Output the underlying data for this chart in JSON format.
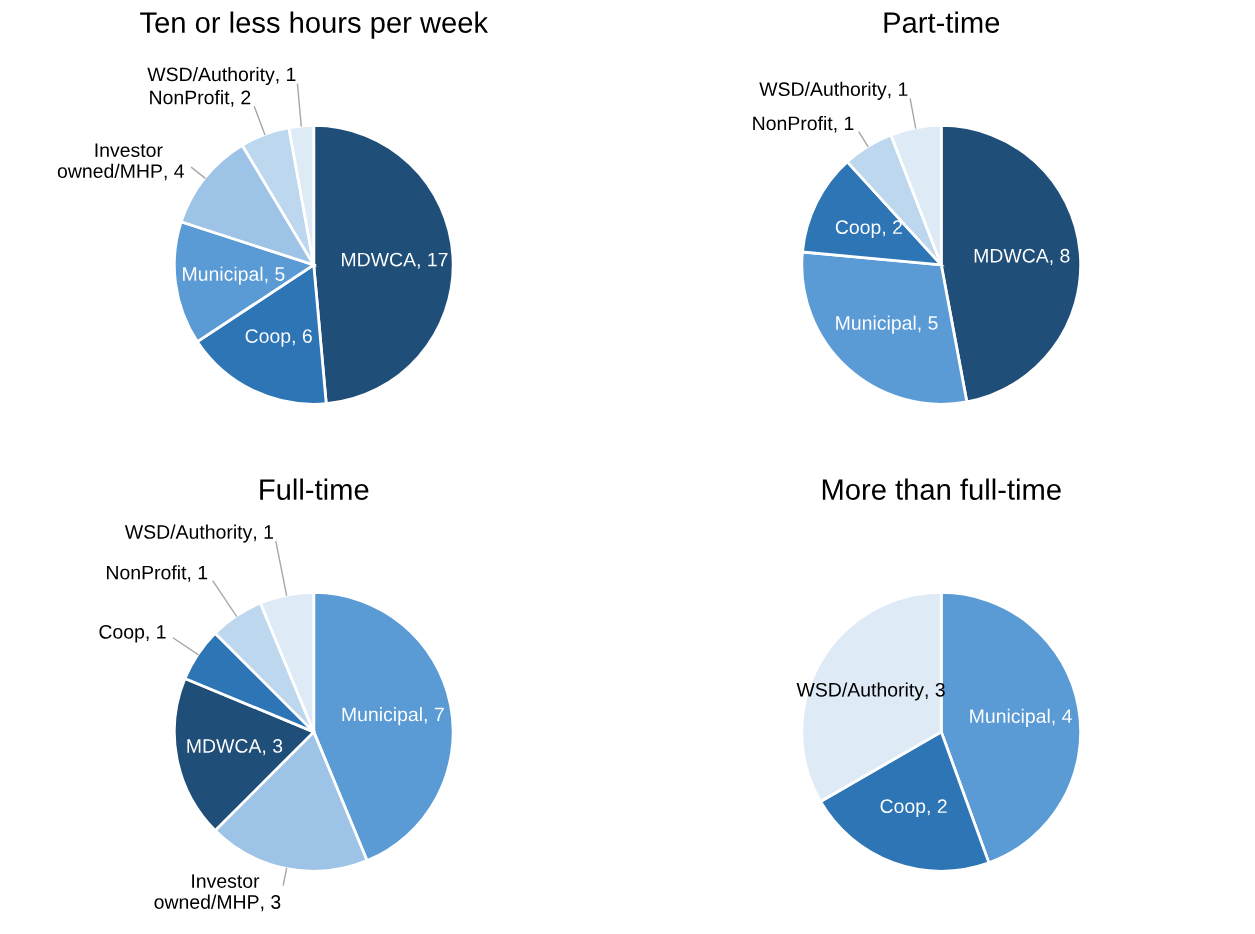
{
  "chart_data": [
    {
      "type": "pie",
      "title": "Ten or less hours per week",
      "categories": [
        "MDWCA",
        "Coop",
        "Municipal",
        "Investor owned/MHP",
        "NonProfit",
        "WSD/Authority"
      ],
      "values": [
        17,
        6,
        5,
        4,
        2,
        1
      ],
      "colors": [
        "#1f4e79",
        "#2e75b6",
        "#5b9bd5",
        "#9dc3e6",
        "#bdd7ee",
        "#deebf7"
      ],
      "value_labels": [
        ", 17",
        ", 6",
        ", 5",
        ", 4",
        ", 2",
        ", 1"
      ]
    },
    {
      "type": "pie",
      "title": "Part-time",
      "categories": [
        "MDWCA",
        "Municipal",
        "Coop",
        "NonProfit",
        "WSD/Authority"
      ],
      "values": [
        8,
        5,
        2,
        1,
        1
      ],
      "colors": [
        "#1f4e79",
        "#5b9bd5",
        "#2e75b6",
        "#bdd7ee",
        "#deebf7"
      ],
      "value_labels": [
        ", 8",
        ", 5",
        ", 2",
        ", 1",
        ", 1"
      ]
    },
    {
      "type": "pie",
      "title": "Full-time",
      "categories": [
        "Municipal",
        "Investor owned/MHP",
        "MDWCA",
        "Coop",
        "NonProfit",
        "WSD/Authority"
      ],
      "values": [
        7,
        3,
        3,
        1,
        1,
        1
      ],
      "colors": [
        "#5b9bd5",
        "#9dc3e6",
        "#1f4e79",
        "#2e75b6",
        "#bdd7ee",
        "#deebf7"
      ],
      "value_labels": [
        ", 7",
        ", 3",
        ", 3",
        ", 1",
        ", 1",
        ", 1"
      ]
    },
    {
      "type": "pie",
      "title": "More than full-time",
      "categories": [
        "Municipal",
        "Coop",
        "WSD/Authority"
      ],
      "values": [
        4,
        2,
        3
      ],
      "colors": [
        "#5b9bd5",
        "#2e75b6",
        "#deebf7"
      ],
      "value_labels": [
        ", 4",
        ", 2",
        ", 3"
      ]
    }
  ]
}
